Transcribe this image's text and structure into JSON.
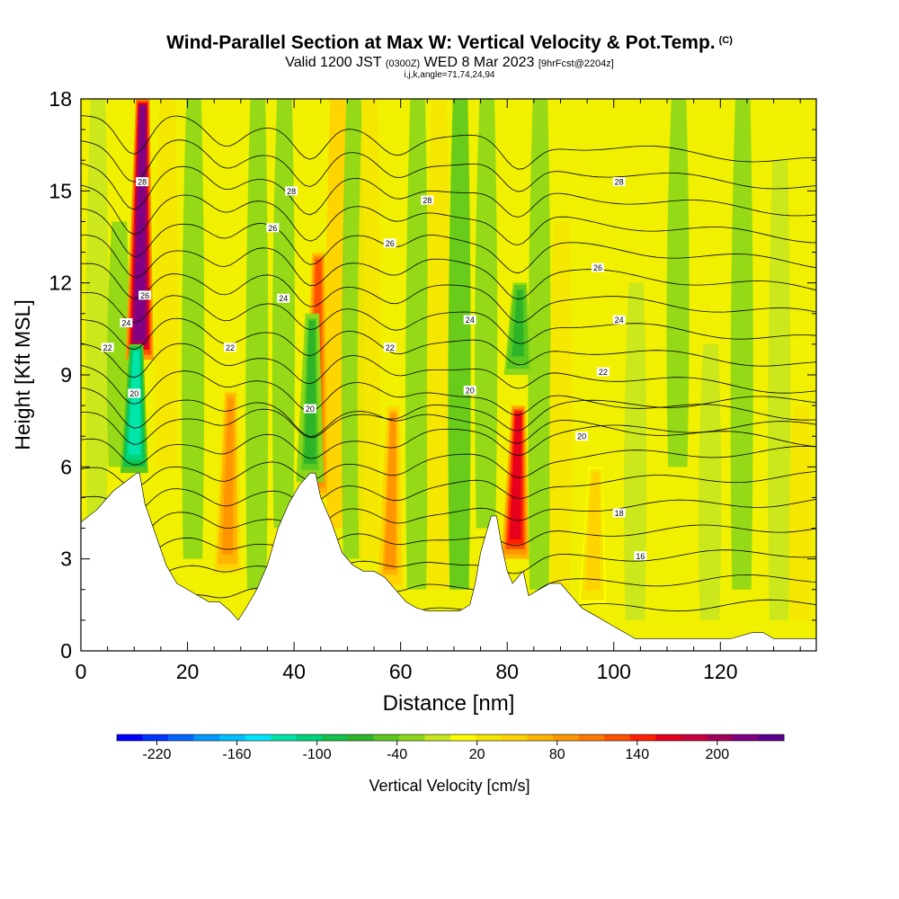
{
  "header": {
    "title": "Wind-Parallel Section at Max W: Vertical Velocity & Pot.Temp.",
    "copyright": "(C)",
    "subtitle_a": "Valid 1200 JST",
    "subtitle_utc": "(0300Z)",
    "subtitle_b": "WED 8 Mar 2023",
    "subtitle_fcst": "[9hrFcst@2204z]",
    "subtitle_2": "i,j,k,angle=71,74,24,94"
  },
  "colors": {
    "terrain": "#ffffff",
    "contour": "#000000",
    "frame": "#000000"
  },
  "chart_data": {
    "type": "heatmap",
    "title": "Wind-Parallel Section at Max W: Vertical Velocity & Pot.Temp.",
    "xlabel": "Distance [nm]",
    "ylabel": "Height [Kft MSL]",
    "xlim": [
      0,
      138
    ],
    "ylim": [
      0,
      18
    ],
    "x_ticks": [
      0,
      20,
      40,
      60,
      80,
      100,
      120
    ],
    "y_ticks": [
      0,
      3,
      6,
      9,
      12,
      15,
      18
    ],
    "colorbar": {
      "label": "Vertical Velocity [cm/s]",
      "tick_labels": [
        "-220",
        "-160",
        "-100",
        "-40",
        "20",
        "80",
        "140",
        "200"
      ],
      "tick_values": [
        -220,
        -160,
        -100,
        -40,
        20,
        80,
        140,
        200
      ],
      "range": [
        -250,
        250
      ],
      "colors": [
        "#0000ff",
        "#0033ff",
        "#0066ff",
        "#0099ff",
        "#00bfff",
        "#00e5ff",
        "#00e5aa",
        "#00d27a",
        "#13c04a",
        "#2db428",
        "#5ac81e",
        "#8cd719",
        "#c8e61e",
        "#ffff00",
        "#f5e600",
        "#ffd200",
        "#ffb400",
        "#ff9600",
        "#ff7800",
        "#ff5000",
        "#ff2000",
        "#e6001e",
        "#c8003c",
        "#a0005a",
        "#820082",
        "#5a008c"
      ]
    },
    "updrafts": [
      {
        "x": 11.0,
        "w": 230,
        "top": 18,
        "bottom": 9.5
      },
      {
        "x": 27.5,
        "w": 90,
        "top": 8.5,
        "bottom": 2.5
      },
      {
        "x": 44.0,
        "w": 120,
        "top": 13.0,
        "bottom": 5.0
      },
      {
        "x": 58.0,
        "w": 80,
        "top": 8.0,
        "bottom": 2.0
      },
      {
        "x": 81.5,
        "w": 170,
        "top": 8.0,
        "bottom": 3.0
      },
      {
        "x": 96.0,
        "w": 50,
        "top": 6.0,
        "bottom": 1.5
      }
    ],
    "downdrafts": [
      {
        "x": 10.0,
        "w": -130,
        "top": 10.0,
        "bottom": 5.8
      },
      {
        "x": 43.0,
        "w": -60,
        "top": 11.0,
        "bottom": 5.5
      },
      {
        "x": 82.0,
        "w": -70,
        "top": 12.0,
        "bottom": 9.0
      }
    ],
    "terrain_profile": {
      "x": [
        0,
        3,
        6,
        9,
        10.5,
        11,
        12,
        14,
        16,
        18,
        20,
        22,
        24,
        26,
        28,
        29.5,
        31,
        33,
        35,
        37,
        39,
        41,
        43,
        44,
        45,
        47,
        49,
        51,
        53,
        55,
        57,
        59,
        61,
        63,
        65,
        67,
        69,
        71,
        73,
        74,
        75,
        77,
        78,
        79,
        80,
        81,
        83,
        84,
        86,
        88,
        90,
        92,
        94,
        96,
        98,
        100,
        102,
        104,
        106,
        110,
        116,
        122,
        126,
        128,
        130,
        132,
        138
      ],
      "height_kft": [
        4.2,
        4.6,
        5.2,
        5.6,
        5.8,
        5.8,
        4.8,
        3.8,
        2.8,
        2.2,
        2.0,
        1.8,
        1.6,
        1.6,
        1.3,
        1.0,
        1.4,
        2.0,
        2.8,
        4.0,
        4.8,
        5.4,
        5.8,
        5.8,
        5.0,
        4.2,
        3.2,
        2.8,
        2.6,
        2.6,
        2.4,
        2.0,
        1.6,
        1.4,
        1.3,
        1.3,
        1.3,
        1.3,
        1.5,
        2.2,
        3.2,
        4.4,
        4.4,
        3.4,
        2.6,
        2.2,
        2.6,
        1.8,
        2.0,
        2.2,
        2.2,
        1.8,
        1.4,
        1.2,
        1.0,
        0.8,
        0.6,
        0.4,
        0.4,
        0.4,
        0.4,
        0.4,
        0.6,
        0.6,
        0.4,
        0.4,
        0.4
      ]
    },
    "theta_contours": [
      {
        "label": "16",
        "base_kft": 4.0,
        "label_pos": [
          100,
          4.4
        ]
      },
      {
        "label": "18",
        "base_kft": 4.3,
        "label_pos": [
          92,
          4.6
        ]
      },
      {
        "label": "20",
        "base_kft": 7.2,
        "label_pos": [
          95,
          7.0
        ]
      },
      {
        "label": "22",
        "base_kft": 9.6,
        "label_pos": [
          98,
          9.0
        ]
      },
      {
        "label": "24",
        "base_kft": 11.2,
        "label_pos": [
          102,
          10.8
        ]
      },
      {
        "label": "26",
        "base_kft": 12.7,
        "label_pos": [
          101,
          12.5
        ]
      },
      {
        "label": "28",
        "base_kft": 15.1,
        "label_pos": [
          101,
          15.3
        ]
      }
    ],
    "contour_labels": [
      {
        "text": "22",
        "x": 5,
        "y": 9.9
      },
      {
        "text": "24",
        "x": 8.5,
        "y": 10.7
      },
      {
        "text": "20",
        "x": 10,
        "y": 8.4
      },
      {
        "text": "28",
        "x": 11.5,
        "y": 15.3
      },
      {
        "text": "26",
        "x": 12,
        "y": 11.6
      },
      {
        "text": "22",
        "x": 28,
        "y": 9.9
      },
      {
        "text": "24",
        "x": 38,
        "y": 11.5
      },
      {
        "text": "26",
        "x": 36,
        "y": 13.8
      },
      {
        "text": "28",
        "x": 39.5,
        "y": 15.0
      },
      {
        "text": "20",
        "x": 43,
        "y": 7.9
      },
      {
        "text": "22",
        "x": 58,
        "y": 9.9
      },
      {
        "text": "26",
        "x": 58,
        "y": 13.3
      },
      {
        "text": "28",
        "x": 65,
        "y": 14.7
      },
      {
        "text": "24",
        "x": 73,
        "y": 10.8
      },
      {
        "text": "20",
        "x": 73,
        "y": 8.5
      },
      {
        "text": "28",
        "x": 101,
        "y": 15.3
      },
      {
        "text": "26",
        "x": 97,
        "y": 12.5
      },
      {
        "text": "24",
        "x": 101,
        "y": 10.8
      },
      {
        "text": "22",
        "x": 98,
        "y": 9.1
      },
      {
        "text": "20",
        "x": 94,
        "y": 7.0
      },
      {
        "text": "18",
        "x": 101,
        "y": 4.5
      },
      {
        "text": "16",
        "x": 105,
        "y": 3.1
      }
    ]
  }
}
